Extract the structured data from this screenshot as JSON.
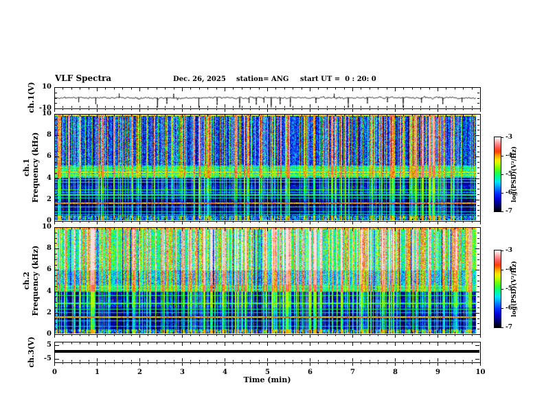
{
  "header": {
    "title": "VLF Spectra",
    "date": "Dec. 26, 2025",
    "station": "station= ANG",
    "start_ut": "start UT =  0 : 20: 0"
  },
  "chart_data": {
    "type": "heatmap",
    "subtype": "multi-panel VLF spectrogram display",
    "title": "VLF Spectra",
    "xlabel": "Time (min)",
    "x_range": [
      0,
      10
    ],
    "x_major_ticks": [
      0,
      1,
      2,
      3,
      4,
      5,
      6,
      7,
      8,
      9,
      10
    ],
    "x_minor_step": 0.2,
    "panels": [
      {
        "id": "ch1_waveform",
        "type": "line",
        "ylabel": "ch.1(V)",
        "ylim": [
          -10,
          10
        ],
        "yticks": [
          10,
          -10
        ],
        "y_minor_ticks": [
          5,
          0,
          -5
        ],
        "noise_amp_V": 1.0,
        "spikes_min_V": [
          [
            0.55,
            -2.2
          ],
          [
            0.95,
            -3.2
          ],
          [
            1.5,
            2.2
          ],
          [
            2.4,
            -7.5
          ],
          [
            2.62,
            -3.0
          ],
          [
            2.78,
            2.0
          ],
          [
            3.37,
            -9.0
          ],
          [
            3.8,
            -3.5
          ],
          [
            4.33,
            -5.2
          ],
          [
            4.55,
            -2.6
          ],
          [
            4.72,
            -3.4
          ],
          [
            4.9,
            -2.4
          ],
          [
            5.07,
            -8.0
          ],
          [
            5.28,
            -3.2
          ],
          [
            5.52,
            -4.6
          ],
          [
            6.12,
            -2.6
          ],
          [
            6.55,
            2.0
          ],
          [
            6.88,
            -5.4
          ],
          [
            7.33,
            -2.8
          ],
          [
            7.8,
            -2.2
          ],
          [
            8.17,
            -5.2
          ],
          [
            8.6,
            -2.4
          ],
          [
            9.1,
            -3.2
          ],
          [
            9.55,
            -2.2
          ]
        ]
      },
      {
        "id": "ch1_spectrogram",
        "type": "heatmap",
        "ylabel_lines": [
          "ch.1",
          "Frequency (kHz)"
        ],
        "ylim": [
          0,
          10
        ],
        "yticks": [
          0,
          2,
          4,
          6,
          8,
          10
        ],
        "y_minor_step": 0.5,
        "stripe_probs": {
          "strong": 0.045,
          "medium": 0.34,
          "weak": 0.25
        },
        "bands": [
          {
            "f0": 9.85,
            "f1": 10.01,
            "base": -5.6,
            "var": 0.5,
            "gain": 1.2,
            "max": -3.4
          },
          {
            "f0": 5.2,
            "f1": 9.85,
            "base": -6.15,
            "var": 0.6,
            "gain": 1.7,
            "max": -3.2
          },
          {
            "f0": 4.05,
            "f1": 5.2,
            "base": -5.35,
            "var": 0.45,
            "gain": 1.0,
            "max": -3.4
          },
          {
            "f0": 3.3,
            "f1": 4.05,
            "base": -6.65,
            "var": 0.35,
            "gain": 1.2,
            "max": -4.5
          },
          {
            "f0": 2.55,
            "f1": 3.3,
            "base": -6.35,
            "var": 0.4,
            "gain": 1.1,
            "max": -4.5
          },
          {
            "f0": 1.85,
            "f1": 2.55,
            "base": -6.8,
            "var": 0.25,
            "gain": 1.0,
            "max": -4.6
          },
          {
            "f0": 1.35,
            "f1": 1.85,
            "base": -6.9,
            "var": 0.2,
            "gain": 0.9,
            "max": -4.6
          },
          {
            "f0": 0.45,
            "f1": 1.35,
            "base": -6.75,
            "var": 0.3,
            "gain": 0.9,
            "max": -4.6
          },
          {
            "f0": 0.0,
            "f1": 0.45,
            "base": -6.0,
            "var": 0.7,
            "gain": 1.3,
            "max": -4.0
          }
        ],
        "hlines": [
          {
            "f": 9.95,
            "level": -4.4,
            "th": 0.1
          },
          {
            "f": 4.95,
            "level": -5.0,
            "th": 0.08
          },
          {
            "f": 4.75,
            "level": -4.7,
            "th": 0.08
          },
          {
            "f": 4.55,
            "level": -4.4,
            "th": 0.12
          },
          {
            "f": 4.3,
            "level": -4.7,
            "th": 0.1
          },
          {
            "f": 4.1,
            "level": -5.1,
            "th": 0.08
          },
          {
            "f": 3.85,
            "level": -5.3,
            "th": 0.07
          },
          {
            "f": 3.6,
            "level": -5.1,
            "th": 0.08
          },
          {
            "f": 2.9,
            "level": -5.0,
            "th": 0.08
          },
          {
            "f": 2.65,
            "level": -5.6,
            "th": 0.07
          },
          {
            "f": 2.4,
            "level": -5.2,
            "th": 0.08
          },
          {
            "f": 2.1,
            "level": -5.3,
            "th": 0.07
          },
          {
            "f": 1.6,
            "level": -4.1,
            "th": 0.12
          },
          {
            "f": 1.25,
            "level": -5.2,
            "th": 0.07
          },
          {
            "f": 0.8,
            "level": -5.4,
            "th": 0.07
          },
          {
            "f": 0.55,
            "level": -5.6,
            "th": 0.07
          }
        ]
      },
      {
        "id": "ch2_spectrogram",
        "type": "heatmap",
        "ylabel_lines": [
          "ch.2",
          "Frequency (kHz)"
        ],
        "ylim": [
          0,
          10
        ],
        "yticks": [
          0,
          2,
          4,
          6,
          8,
          10
        ],
        "y_minor_step": 0.5,
        "stripe_probs": {
          "strong": 0.06,
          "medium": 0.42,
          "weak": 0.22
        },
        "bands": [
          {
            "f0": 9.85,
            "f1": 10.01,
            "base": -5.2,
            "var": 0.5,
            "gain": 1.2,
            "max": -3.2
          },
          {
            "f0": 6.0,
            "f1": 9.85,
            "base": -5.15,
            "var": 0.55,
            "gain": 1.5,
            "max": -3.1
          },
          {
            "f0": 4.6,
            "f1": 6.0,
            "base": -5.6,
            "var": 0.5,
            "gain": 1.4,
            "max": -3.2
          },
          {
            "f0": 3.95,
            "f1": 4.6,
            "base": -5.3,
            "var": 0.4,
            "gain": 1.0,
            "max": -3.4
          },
          {
            "f0": 3.2,
            "f1": 3.95,
            "base": -6.55,
            "var": 0.35,
            "gain": 1.2,
            "max": -4.5
          },
          {
            "f0": 2.5,
            "f1": 3.2,
            "base": -6.3,
            "var": 0.4,
            "gain": 1.1,
            "max": -4.5
          },
          {
            "f0": 1.8,
            "f1": 2.5,
            "base": -6.75,
            "var": 0.25,
            "gain": 1.0,
            "max": -4.6
          },
          {
            "f0": 1.3,
            "f1": 1.8,
            "base": -6.85,
            "var": 0.2,
            "gain": 0.9,
            "max": -4.6
          },
          {
            "f0": 0.4,
            "f1": 1.3,
            "base": -6.7,
            "var": 0.3,
            "gain": 0.9,
            "max": -4.6
          },
          {
            "f0": 0.0,
            "f1": 0.4,
            "base": -6.0,
            "var": 0.7,
            "gain": 1.3,
            "max": -4.0
          }
        ],
        "hlines": [
          {
            "f": 9.95,
            "level": -4.2,
            "th": 0.1
          },
          {
            "f": 4.45,
            "level": -4.6,
            "th": 0.1
          },
          {
            "f": 4.15,
            "level": -5.0,
            "th": 0.08
          },
          {
            "f": 3.6,
            "level": -5.2,
            "th": 0.08
          },
          {
            "f": 2.85,
            "level": -5.1,
            "th": 0.08
          },
          {
            "f": 2.3,
            "level": -5.3,
            "th": 0.07
          },
          {
            "f": 2.0,
            "level": -5.5,
            "th": 0.07
          },
          {
            "f": 1.55,
            "level": -4.3,
            "th": 0.12
          },
          {
            "f": 1.2,
            "level": -5.3,
            "th": 0.07
          },
          {
            "f": 0.7,
            "level": -5.5,
            "th": 0.07
          }
        ]
      },
      {
        "id": "ch3_trace",
        "type": "line",
        "ylabel": "ch.3(V)",
        "ylim": [
          -7.5,
          7.5
        ],
        "yticks": [
          5,
          -5
        ],
        "y_minor_ticks": [
          0
        ],
        "value_V": 0,
        "line_color": "#000000"
      }
    ],
    "colorbar": {
      "label": "log(PSD)(V²/Hz)",
      "range": [
        -7,
        -3
      ],
      "ticks": [
        -3,
        -4,
        -5,
        -6,
        -7
      ],
      "stops": [
        [
          0.0,
          "#000006"
        ],
        [
          0.08,
          "#000070"
        ],
        [
          0.16,
          "#0000d0"
        ],
        [
          0.24,
          "#0030ff"
        ],
        [
          0.32,
          "#0090ff"
        ],
        [
          0.39,
          "#00e0ff"
        ],
        [
          0.46,
          "#00ff9c"
        ],
        [
          0.52,
          "#22ff44"
        ],
        [
          0.59,
          "#7cff00"
        ],
        [
          0.65,
          "#d0ff00"
        ],
        [
          0.7,
          "#ffe400"
        ],
        [
          0.76,
          "#ff9600"
        ],
        [
          0.81,
          "#ff3c00"
        ],
        [
          0.87,
          "#ff5a5a"
        ],
        [
          0.94,
          "#ffaaaa"
        ],
        [
          1.0,
          "#ffffff"
        ]
      ]
    }
  }
}
